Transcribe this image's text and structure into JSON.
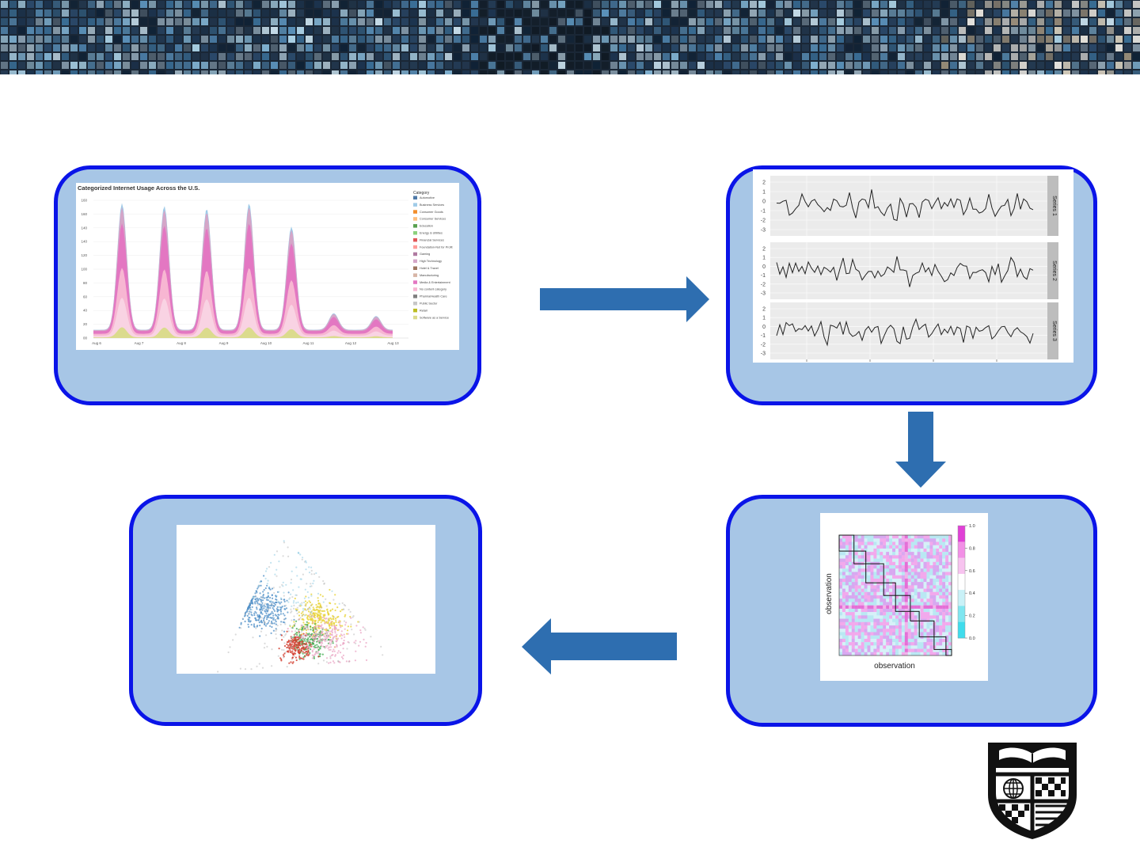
{
  "area_chart": {
    "title": "Categorized Internet Usage Across the U.S.",
    "legend_title": "Category",
    "legend": [
      {
        "label": "Automotive",
        "color": "#4e79a7"
      },
      {
        "label": "Business Services",
        "color": "#a0cbe8"
      },
      {
        "label": "Consumer Goods",
        "color": "#f28e2b"
      },
      {
        "label": "Consumer Services",
        "color": "#ffbe7d"
      },
      {
        "label": "Education",
        "color": "#59a14f"
      },
      {
        "label": "Energy & Utilities",
        "color": "#8cd17d"
      },
      {
        "label": "Financial Services",
        "color": "#e15759"
      },
      {
        "label": "Foundation-Not for Profit",
        "color": "#ff9d9a"
      },
      {
        "label": "Gaming",
        "color": "#b07aa1"
      },
      {
        "label": "High Technology",
        "color": "#d4a6c8"
      },
      {
        "label": "Hotel & Travel",
        "color": "#9d7660"
      },
      {
        "label": "Manufacturing",
        "color": "#d7b5a6"
      },
      {
        "label": "Media & Entertainment",
        "color": "#e377c2"
      },
      {
        "label": "No content category",
        "color": "#f7b6d2"
      },
      {
        "label": "Pharma/Health Care",
        "color": "#7f7f7f"
      },
      {
        "label": "Public Sector",
        "color": "#c7c7c7"
      },
      {
        "label": "Retail",
        "color": "#bcbd22"
      },
      {
        "label": "Software as a Service",
        "color": "#dbdb8d"
      }
    ],
    "y_ticks": [
      "160",
      "160",
      "140",
      "140",
      "120",
      "100",
      "80",
      "60",
      "40",
      "20",
      "00"
    ],
    "x_ticks": [
      "Aug 6",
      "Aug 7",
      "Aug 8",
      "Aug 9",
      "Aug 10",
      "Aug 11",
      "Aug 12",
      "Aug 13"
    ]
  },
  "series_chart": {
    "y_ticks": [
      "2",
      "1",
      "0",
      "-1",
      "-2",
      "-3"
    ],
    "strip_labels": [
      "Series 1",
      "Series 2",
      "Series 3"
    ]
  },
  "heatmap": {
    "xlabel": "observation",
    "ylabel": "observation",
    "scale_ticks": [
      "1.0",
      "0.8",
      "0.6",
      "0.4",
      "0.2",
      "0.0"
    ]
  },
  "colors": {
    "panel_fill": "#a7c6e6",
    "panel_border": "#0a14e8",
    "arrow": "#2e6eb0"
  }
}
